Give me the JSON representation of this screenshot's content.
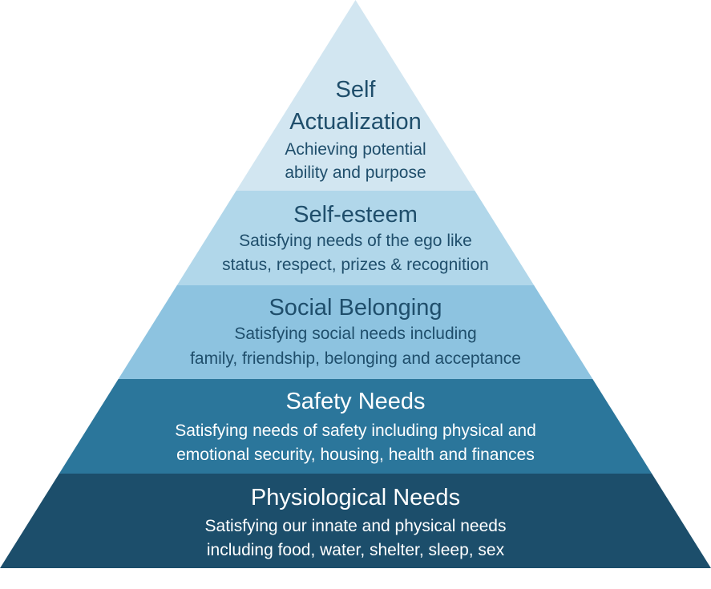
{
  "levels": [
    {
      "title_lines": [
        "Self",
        "Actualization"
      ],
      "description_lines": [
        "Achieving potential",
        "ability and purpose"
      ],
      "fill": "#d2e6f1",
      "text_color": "#1f4e6b"
    },
    {
      "title_lines": [
        "Self-esteem"
      ],
      "description_lines": [
        "Satisfying needs of the ego like",
        "status, respect, prizes & recognition"
      ],
      "fill": "#b1d7ea",
      "text_color": "#1f4e6b"
    },
    {
      "title_lines": [
        "Social Belonging"
      ],
      "description_lines": [
        "Satisfying social needs including",
        "family, friendship, belonging and acceptance"
      ],
      "fill": "#8dc3e0",
      "text_color": "#1f4e6b"
    },
    {
      "title_lines": [
        "Safety Needs"
      ],
      "description_lines": [
        "Satisfying needs of safety including physical and",
        "emotional security, housing, health and finances"
      ],
      "fill": "#2b769b",
      "text_color": "#ffffff"
    },
    {
      "title_lines": [
        "Physiological Needs"
      ],
      "description_lines": [
        "Satisfying our innate and physical needs",
        "including food, water, shelter, sleep, sex"
      ],
      "fill": "#1c4e6b",
      "text_color": "#ffffff"
    }
  ]
}
